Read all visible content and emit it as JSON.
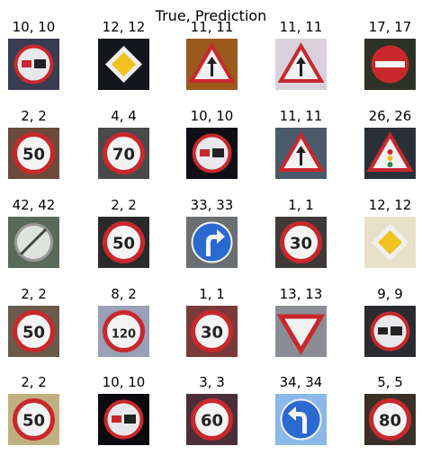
{
  "chart_data": {
    "type": "image_grid",
    "title": "True, Prediction",
    "rows": 5,
    "cols": 5,
    "cells": [
      {
        "true": 10,
        "pred": 10,
        "label": "10, 10",
        "sign": "no-overtaking-trucks",
        "bg": "#3a3c52"
      },
      {
        "true": 12,
        "pred": 12,
        "label": "12, 12",
        "sign": "priority-road",
        "bg": "#15161c"
      },
      {
        "true": 11,
        "pred": 11,
        "label": "11, 11",
        "sign": "right-of-way",
        "bg": "#9a5a1c"
      },
      {
        "true": 11,
        "pred": 11,
        "label": "11, 11",
        "sign": "right-of-way",
        "bg": "#d9d2dc"
      },
      {
        "true": 17,
        "pred": 17,
        "label": "17, 17",
        "sign": "no-entry",
        "bg": "#2c3226"
      },
      {
        "true": 2,
        "pred": 2,
        "label": "2, 2",
        "sign": "speed-limit",
        "text": "50",
        "bg": "#6b4a3a"
      },
      {
        "true": 4,
        "pred": 4,
        "label": "4, 4",
        "sign": "speed-limit",
        "text": "70",
        "bg": "#4a4a4a"
      },
      {
        "true": 10,
        "pred": 10,
        "label": "10, 10",
        "sign": "no-overtaking-trucks",
        "bg": "#0e0f14"
      },
      {
        "true": 11,
        "pred": 11,
        "label": "11, 11",
        "sign": "right-of-way",
        "bg": "#4a5a6a"
      },
      {
        "true": 26,
        "pred": 26,
        "label": "26, 26",
        "sign": "traffic-signals",
        "bg": "#2a3038"
      },
      {
        "true": 42,
        "pred": 42,
        "label": "42, 42",
        "sign": "end-no-overtaking-trucks",
        "bg": "#5a6a5a"
      },
      {
        "true": 2,
        "pred": 2,
        "label": "2, 2",
        "sign": "speed-limit",
        "text": "50",
        "bg": "#2a2a2a"
      },
      {
        "true": 33,
        "pred": 33,
        "label": "33, 33",
        "sign": "turn-right",
        "bg": "#6a6e70"
      },
      {
        "true": 1,
        "pred": 1,
        "label": "1, 1",
        "sign": "speed-limit",
        "text": "30",
        "bg": "#3e3a38"
      },
      {
        "true": 12,
        "pred": 12,
        "label": "12, 12",
        "sign": "priority-road",
        "bg": "#e8e0c8"
      },
      {
        "true": 2,
        "pred": 2,
        "label": "2, 2",
        "sign": "speed-limit",
        "text": "50",
        "bg": "#6a5a4a"
      },
      {
        "true": 8,
        "pred": 2,
        "label": "8, 2",
        "sign": "speed-limit",
        "text": "120",
        "bg": "#9aa0b8"
      },
      {
        "true": 1,
        "pred": 1,
        "label": "1, 1",
        "sign": "speed-limit",
        "text": "30",
        "bg": "#7a3a3a"
      },
      {
        "true": 13,
        "pred": 13,
        "label": "13, 13",
        "sign": "yield",
        "bg": "#8a8e94"
      },
      {
        "true": 9,
        "pred": 9,
        "label": "9, 9",
        "sign": "no-overtaking",
        "bg": "#2a2c30"
      },
      {
        "true": 2,
        "pred": 2,
        "label": "2, 2",
        "sign": "speed-limit",
        "text": "50",
        "bg": "#c0b080"
      },
      {
        "true": 10,
        "pred": 10,
        "label": "10, 10",
        "sign": "no-overtaking-trucks",
        "bg": "#0c0c10"
      },
      {
        "true": 3,
        "pred": 3,
        "label": "3, 3",
        "sign": "speed-limit",
        "text": "60",
        "bg": "#4a2e3a"
      },
      {
        "true": 34,
        "pred": 34,
        "label": "34, 34",
        "sign": "turn-left",
        "bg": "#8ab8e8"
      },
      {
        "true": 5,
        "pred": 5,
        "label": "5, 5",
        "sign": "speed-limit",
        "text": "80",
        "bg": "#3a3028"
      }
    ]
  }
}
